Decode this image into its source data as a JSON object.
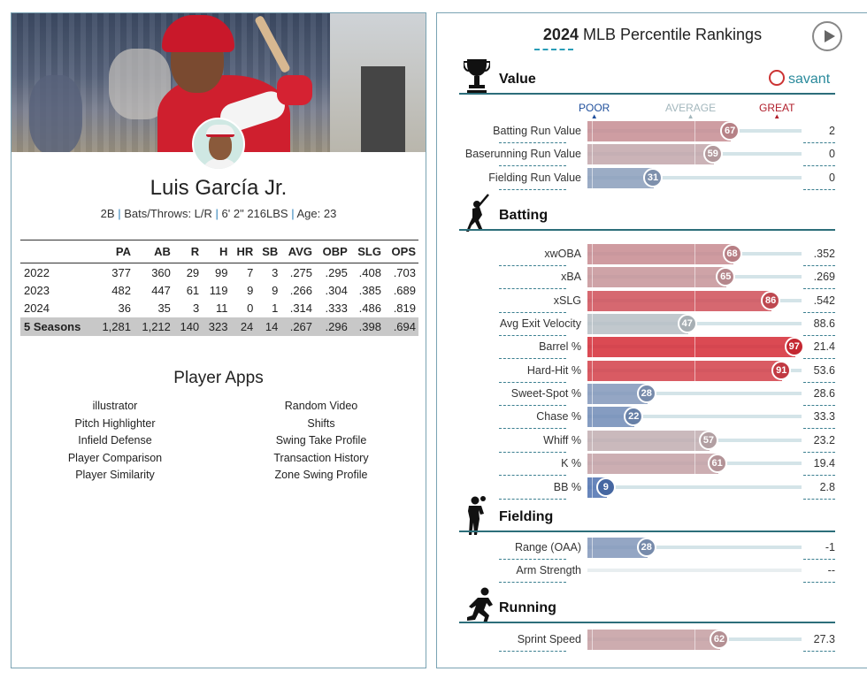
{
  "player": {
    "name": "Luis García Jr.",
    "position": "2B",
    "bats_throws": "Bats/Throws: L/R",
    "height_weight": "6' 2\" 216LBS",
    "age": "Age: 23"
  },
  "stats": {
    "headers": [
      "",
      "PA",
      "AB",
      "R",
      "H",
      "HR",
      "SB",
      "AVG",
      "OBP",
      "SLG",
      "OPS"
    ],
    "rows": [
      [
        "2022",
        "377",
        "360",
        "29",
        "99",
        "7",
        "3",
        ".275",
        ".295",
        ".408",
        ".703"
      ],
      [
        "2023",
        "482",
        "447",
        "61",
        "119",
        "9",
        "9",
        ".266",
        ".304",
        ".385",
        ".689"
      ],
      [
        "2024",
        "36",
        "35",
        "3",
        "11",
        "0",
        "1",
        ".314",
        ".333",
        ".486",
        ".819"
      ]
    ],
    "total": [
      "5 Seasons",
      "1,281",
      "1,212",
      "140",
      "323",
      "24",
      "14",
      ".267",
      ".296",
      ".398",
      ".694"
    ]
  },
  "apps": {
    "title": "Player Apps",
    "left": [
      "illustrator",
      "Pitch Highlighter",
      "Infield Defense",
      "Player Comparison",
      "Player Similarity"
    ],
    "right": [
      "Random Video",
      "Shifts",
      "Swing Take Profile",
      "Transaction History",
      "Zone Swing Profile"
    ]
  },
  "rankings": {
    "title_year": "2024",
    "title_rest": " MLB Percentile Rankings",
    "logo_text": "savant",
    "scale": {
      "poor": "POOR",
      "average": "AVERAGE",
      "great": "GREAT"
    },
    "sections": [
      {
        "title": "Value",
        "icon": "trophy-icon",
        "rows": [
          {
            "label": "Batting Run Value",
            "percentile": 67,
            "value": "2"
          },
          {
            "label": "Baserunning Run Value",
            "percentile": 59,
            "value": "0"
          },
          {
            "label": "Fielding Run Value",
            "percentile": 31,
            "value": "0"
          }
        ]
      },
      {
        "title": "Batting",
        "icon": "batter-icon",
        "rows": [
          {
            "label": "xwOBA",
            "percentile": 68,
            "value": ".352"
          },
          {
            "label": "xBA",
            "percentile": 65,
            "value": ".269"
          },
          {
            "label": "xSLG",
            "percentile": 86,
            "value": ".542"
          },
          {
            "label": "Avg Exit Velocity",
            "percentile": 47,
            "value": "88.6"
          },
          {
            "label": "Barrel %",
            "percentile": 97,
            "value": "21.4"
          },
          {
            "label": "Hard-Hit %",
            "percentile": 91,
            "value": "53.6"
          },
          {
            "label": "Sweet-Spot %",
            "percentile": 28,
            "value": "28.6"
          },
          {
            "label": "Chase %",
            "percentile": 22,
            "value": "33.3"
          },
          {
            "label": "Whiff %",
            "percentile": 57,
            "value": "23.2"
          },
          {
            "label": "K %",
            "percentile": 61,
            "value": "19.4"
          },
          {
            "label": "BB %",
            "percentile": 9,
            "value": "2.8"
          }
        ]
      },
      {
        "title": "Fielding",
        "icon": "fielder-icon",
        "rows": [
          {
            "label": "Range (OAA)",
            "percentile": 28,
            "value": "-1"
          },
          {
            "label": "Arm Strength",
            "percentile": null,
            "value": "--"
          }
        ]
      },
      {
        "title": "Running",
        "icon": "runner-icon",
        "rows": [
          {
            "label": "Sprint Speed",
            "percentile": 62,
            "value": "27.3"
          }
        ]
      }
    ]
  }
}
